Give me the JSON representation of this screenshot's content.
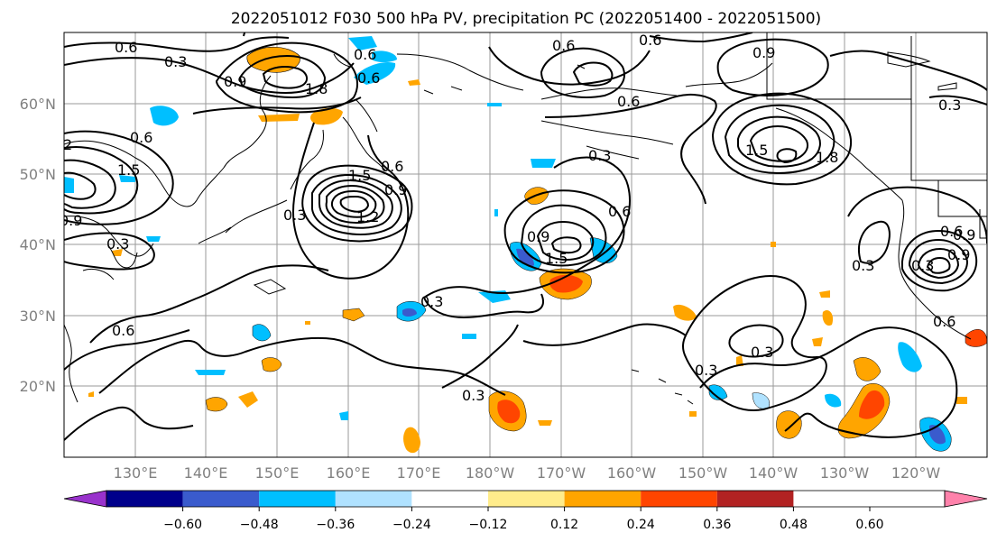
{
  "title": "2022051012 F030 500 hPa PV, precipitation PC (2022051400 - 2022051500)",
  "lat_labels": [
    "60°N",
    "50°N",
    "40°N",
    "30°N",
    "20°N"
  ],
  "lon_labels": [
    "130°E",
    "140°E",
    "150°E",
    "160°E",
    "170°E",
    "180°W",
    "170°W",
    "160°W",
    "150°W",
    "140°W",
    "130°W",
    "120°W"
  ],
  "colorbar": {
    "tick_labels": [
      "−0.60",
      "−0.48",
      "−0.36",
      "−0.24",
      "−0.12",
      "0.12",
      "0.24",
      "0.36",
      "0.48",
      "0.60"
    ],
    "colors": [
      "#9932cc",
      "#00008b",
      "#3a5bcd",
      "#00bfff",
      "#b0e2ff",
      "#ffffff",
      "#ffec8b",
      "#ffa500",
      "#ff4500",
      "#b22222",
      "#ff82ab"
    ],
    "extend": "both"
  },
  "contour_labels": [
    "0.6",
    "0.3",
    "0.9",
    "1.8",
    "0.6",
    "0.6",
    "0.3",
    "1.2",
    "0.6",
    "1.5",
    "0.9",
    "0.3",
    "0.6",
    "0.3",
    "1.5",
    "0.6",
    "0.9",
    "1.5",
    "0.6",
    "0.9",
    "0.6",
    "1.8",
    "0.6",
    "0.3",
    "0.9",
    "0.6",
    "0.3",
    "0.3",
    "0.3",
    "0.3",
    "0.6",
    "0.9",
    "0.6",
    "0.3",
    "0.9",
    "2",
    "1.5",
    "0.3"
  ]
}
